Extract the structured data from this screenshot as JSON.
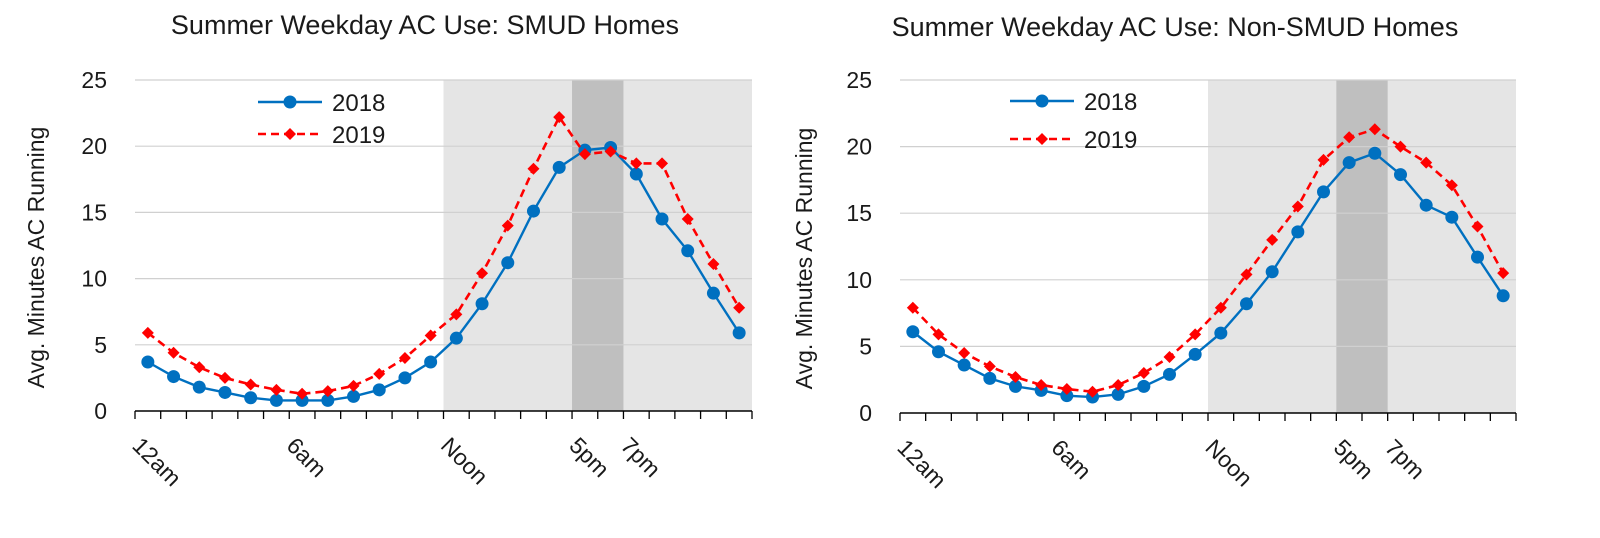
{
  "chart_data": [
    {
      "type": "line",
      "title": "Summer Weekday AC Use:  SMUD Homes",
      "ylabel": "Avg. Minutes AC Running",
      "xlabel": "",
      "ylim": [
        0,
        25
      ],
      "y_ticks": [
        "0",
        "5",
        "10",
        "15",
        "20",
        "25"
      ],
      "x_tick_labels": [
        {
          "hour": 0,
          "label": "12am"
        },
        {
          "hour": 6,
          "label": "6am"
        },
        {
          "hour": 12,
          "label": "Noon"
        },
        {
          "hour": 17,
          "label": "5pm"
        },
        {
          "hour": 19,
          "label": "7pm"
        }
      ],
      "shaded_periods": [
        {
          "start_hour": 12,
          "end_hour": 24,
          "shade": "light"
        },
        {
          "start_hour": 17,
          "end_hour": 19,
          "shade": "dark"
        }
      ],
      "grid": "horizontal",
      "legend_position": "top-left",
      "x": [
        0,
        1,
        2,
        3,
        4,
        5,
        6,
        7,
        8,
        9,
        10,
        11,
        12,
        13,
        14,
        15,
        16,
        17,
        18,
        19,
        20,
        21,
        22,
        23
      ],
      "series": [
        {
          "name": "2018",
          "color": "#0070C0",
          "marker": "circle",
          "dash": "solid",
          "values": [
            3.7,
            2.6,
            1.8,
            1.4,
            1.0,
            0.8,
            0.8,
            0.8,
            1.1,
            1.6,
            2.5,
            3.7,
            5.5,
            8.1,
            11.2,
            15.1,
            18.4,
            19.7,
            19.9,
            17.9,
            14.5,
            12.1,
            8.9,
            5.9
          ]
        },
        {
          "name": "2019",
          "color": "#FF0000",
          "marker": "diamond",
          "dash": "dashed",
          "values": [
            5.9,
            4.4,
            3.3,
            2.5,
            2.0,
            1.6,
            1.3,
            1.5,
            1.9,
            2.8,
            4.0,
            5.7,
            7.3,
            10.4,
            14.0,
            18.3,
            22.2,
            19.4,
            19.6,
            18.7,
            18.7,
            14.5,
            11.1,
            7.8
          ]
        }
      ]
    },
    {
      "type": "line",
      "title": "Summer Weekday AC Use: Non-SMUD Homes",
      "ylabel": "Avg. Minutes AC Running",
      "xlabel": "",
      "ylim": [
        0,
        25
      ],
      "y_ticks": [
        "0",
        "5",
        "10",
        "15",
        "20",
        "25"
      ],
      "x_tick_labels": [
        {
          "hour": 0,
          "label": "12am"
        },
        {
          "hour": 6,
          "label": "6am"
        },
        {
          "hour": 12,
          "label": "Noon"
        },
        {
          "hour": 17,
          "label": "5pm"
        },
        {
          "hour": 19,
          "label": "7pm"
        }
      ],
      "shaded_periods": [
        {
          "start_hour": 12,
          "end_hour": 24,
          "shade": "light"
        },
        {
          "start_hour": 17,
          "end_hour": 19,
          "shade": "dark"
        }
      ],
      "grid": "horizontal",
      "legend_position": "top-left",
      "x": [
        0,
        1,
        2,
        3,
        4,
        5,
        6,
        7,
        8,
        9,
        10,
        11,
        12,
        13,
        14,
        15,
        16,
        17,
        18,
        19,
        20,
        21,
        22,
        23
      ],
      "series": [
        {
          "name": "2018",
          "color": "#0070C0",
          "marker": "circle",
          "dash": "solid",
          "values": [
            6.1,
            4.6,
            3.6,
            2.6,
            2.0,
            1.7,
            1.3,
            1.2,
            1.4,
            2.0,
            2.9,
            4.4,
            6.0,
            8.2,
            10.6,
            13.6,
            16.6,
            18.8,
            19.5,
            17.9,
            15.6,
            14.7,
            11.7,
            8.8
          ]
        },
        {
          "name": "2019",
          "color": "#FF0000",
          "marker": "diamond",
          "dash": "dashed",
          "values": [
            7.9,
            5.9,
            4.5,
            3.5,
            2.7,
            2.1,
            1.8,
            1.6,
            2.1,
            3.0,
            4.2,
            5.9,
            7.9,
            10.4,
            13.0,
            15.5,
            19.0,
            20.7,
            21.3,
            20.0,
            18.8,
            17.1,
            14.0,
            10.5
          ]
        }
      ]
    }
  ]
}
